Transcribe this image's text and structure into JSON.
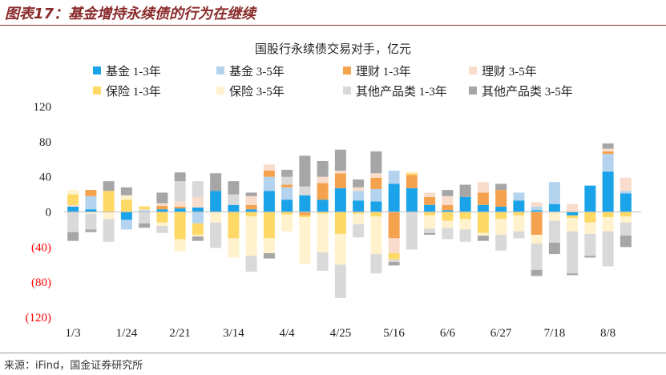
{
  "header": {
    "title": "图表17：基金增持永续债的行为在继续"
  },
  "footer": {
    "source": "来源：iFind，国金证券研究所"
  },
  "colors": {
    "header": "#8A2B2B",
    "label": "#222222",
    "negative_label": "#FF0000",
    "axis": "#BFBFBF"
  },
  "chart_data": {
    "type": "bar",
    "stacked": true,
    "title": "国股行永续债交易对手，亿元",
    "xlabel": "",
    "ylabel": "",
    "legend_position": "top",
    "grid": false,
    "ylim": [
      -120,
      120
    ],
    "y_ticks": [
      120,
      80,
      40,
      0,
      -40,
      -80,
      -120
    ],
    "y_tick_labels": [
      "120",
      "80",
      "40",
      "0",
      "(40)",
      "(80)",
      "(120)"
    ],
    "categories": [
      "1/3",
      "",
      "",
      "1/24",
      "",
      "",
      "2/21",
      "",
      "",
      "3/14",
      "",
      "",
      "4/4",
      "",
      "",
      "4/25",
      "",
      "",
      "5/16",
      "",
      "",
      "6/6",
      "",
      "",
      "6/27",
      "",
      "",
      "7/18",
      "",
      "",
      "8/8",
      ""
    ],
    "series": [
      {
        "name": "基金 1-3年",
        "color": "#1AA3E8",
        "values": [
          6,
          3,
          0,
          -9,
          0,
          3,
          4,
          5,
          24,
          8,
          3,
          24,
          14,
          19,
          14,
          27,
          13,
          12,
          32,
          27,
          8,
          2,
          17,
          8,
          6,
          13,
          2,
          9,
          -4,
          30,
          46,
          21
        ]
      },
      {
        "name": "基金 3-5年",
        "color": "#B4D3EF",
        "values": [
          0,
          15,
          0,
          -11,
          2,
          0,
          0,
          -13,
          0,
          0,
          0,
          16,
          14,
          0,
          0,
          0,
          11,
          14,
          15,
          0,
          0,
          0,
          0,
          0,
          0,
          9,
          4,
          25,
          0,
          0,
          20,
          3
        ]
      },
      {
        "name": "理财 1-3年",
        "color": "#F5A24F",
        "values": [
          0,
          7,
          0,
          0,
          0,
          4,
          2,
          0,
          0,
          0,
          5,
          7,
          3,
          -4,
          19,
          17,
          0,
          13,
          -30,
          15,
          9,
          6,
          0,
          14,
          19,
          0,
          -26,
          0,
          0,
          0,
          3,
          0
        ]
      },
      {
        "name": "理财 3-5年",
        "color": "#F9DCCB",
        "values": [
          2,
          0,
          0,
          0,
          1,
          3,
          6,
          12,
          0,
          0,
          10,
          7,
          0,
          0,
          7,
          3,
          4,
          5,
          -17,
          0,
          5,
          10,
          0,
          12,
          0,
          0,
          5,
          0,
          9,
          0,
          3,
          15
        ]
      },
      {
        "name": "保险 1-3年",
        "color": "#FFD966",
        "values": [
          12,
          0,
          24,
          14,
          3,
          -12,
          -31,
          -13,
          0,
          -30,
          -5,
          -30,
          -3,
          -2,
          -2,
          -25,
          -2,
          -5,
          -7,
          2,
          -4,
          -10,
          -8,
          -24,
          -8,
          -4,
          0,
          0,
          -3,
          -12,
          -6,
          -5
        ]
      },
      {
        "name": "保险 3-5年",
        "color": "#FFF2CC",
        "values": [
          5,
          -2,
          -8,
          5,
          1,
          -4,
          -14,
          -2,
          -12,
          -22,
          -45,
          -17,
          -19,
          -53,
          -44,
          -35,
          -12,
          -43,
          0,
          2,
          -15,
          -8,
          -12,
          -3,
          -18,
          -18,
          -10,
          -10,
          -15,
          -13,
          -16,
          -7
        ]
      },
      {
        "name": "其他产品类 1-3年",
        "color": "#D9D9D9",
        "values": [
          -23,
          -18,
          -26,
          0,
          -13,
          -8,
          23,
          18,
          -29,
          12,
          -18,
          0,
          9,
          10,
          -21,
          -38,
          -15,
          -22,
          -3,
          -43,
          -5,
          -13,
          -14,
          0,
          -18,
          -8,
          -30,
          -25,
          -48,
          -25,
          -40,
          -15
        ]
      },
      {
        "name": "其他产品类 3-5年",
        "color": "#A6A6A6",
        "values": [
          -10,
          -3,
          11,
          9,
          -5,
          12,
          10,
          -5,
          20,
          15,
          4,
          -6,
          8,
          35,
          18,
          24,
          9,
          25,
          -4,
          0,
          -2,
          7,
          14,
          -6,
          7,
          0,
          -7,
          -13,
          -2,
          -2,
          6,
          -13
        ]
      }
    ]
  }
}
